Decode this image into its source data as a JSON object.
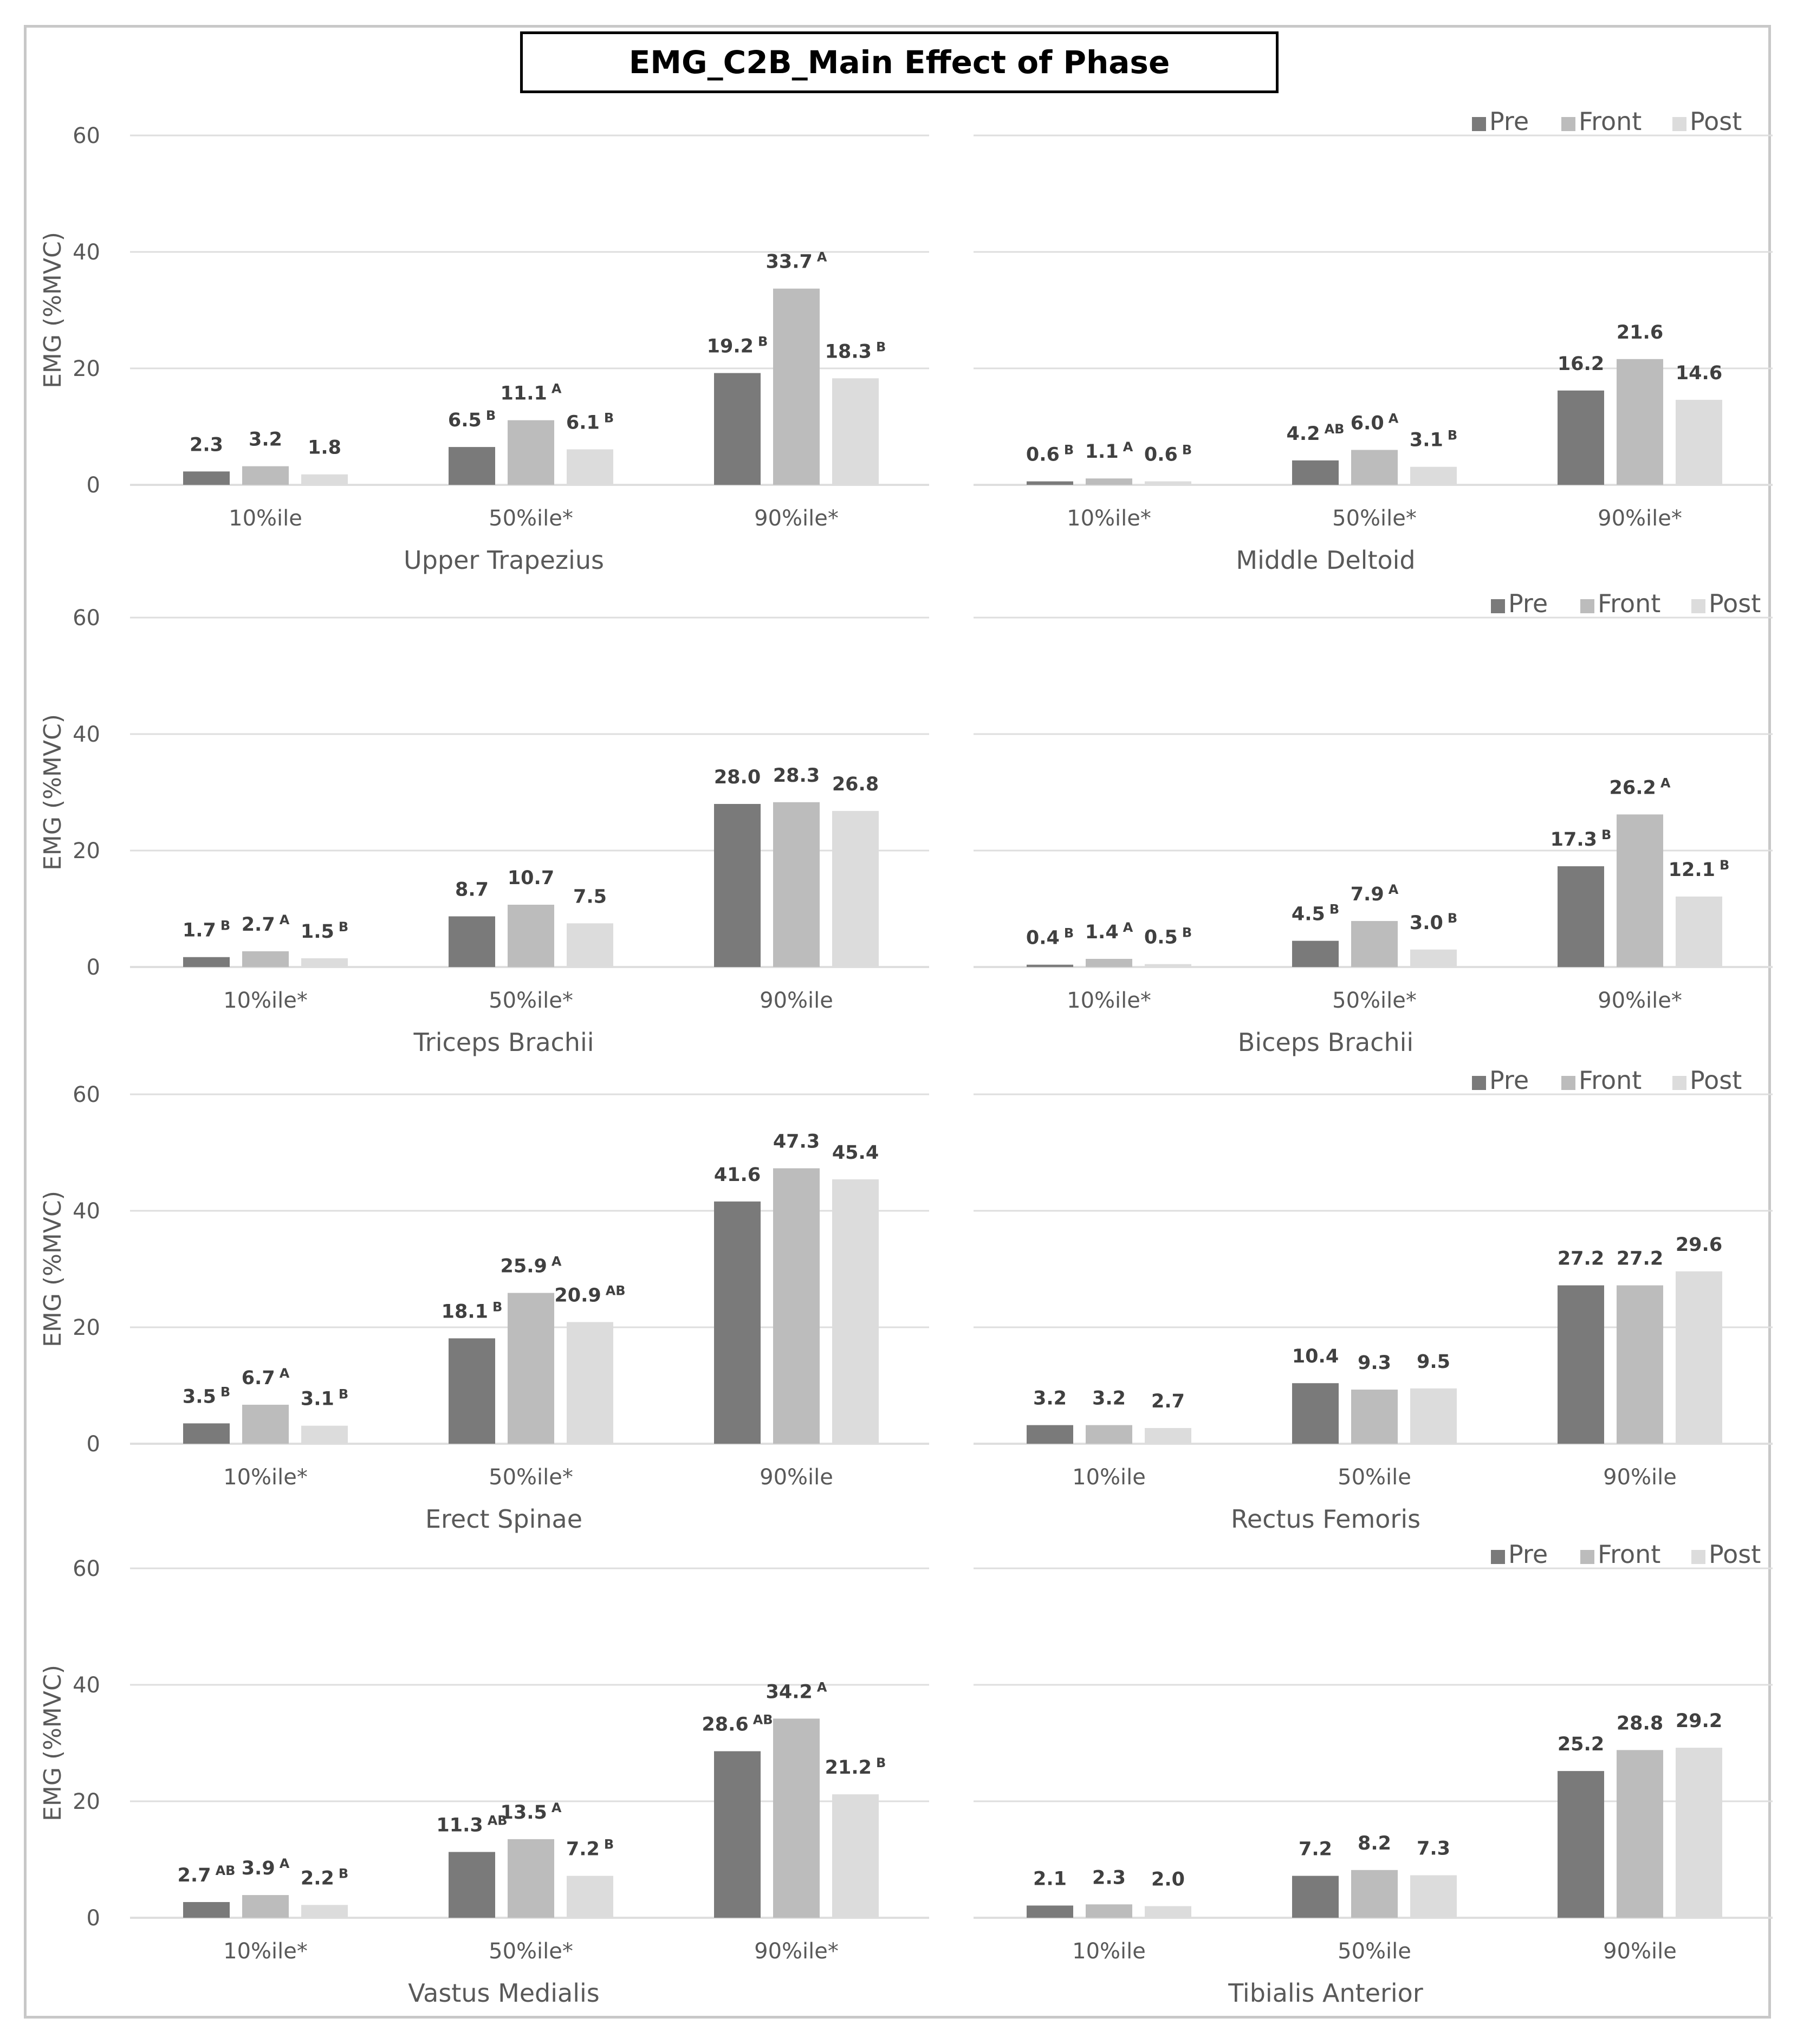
{
  "title": "EMG_C2B_Main Effect of Phase",
  "colors": {
    "pre": "#7a7a7a",
    "front": "#bcbcbc",
    "post": "#dcdcdc",
    "grid": "#dedede",
    "axis_text": "#595959",
    "label_text": "#404040"
  },
  "legend": [
    "Pre",
    "Front",
    "Post"
  ],
  "y_axis_label": "EMG (%MVC)",
  "y_ticks": [
    "0",
    "20",
    "40",
    "60"
  ],
  "chart_data": [
    {
      "type": "bar",
      "title": "Upper Trapezius",
      "ylabel": "EMG (%MVC)",
      "ylim": [
        0,
        60
      ],
      "legend": false,
      "categories": [
        "10%ile",
        "50%ile*",
        "90%ile*"
      ],
      "series": [
        {
          "name": "Pre",
          "values": [
            2.3,
            6.5,
            19.2
          ],
          "labels": [
            "2.3",
            "6.5",
            "19.2"
          ],
          "sup": [
            "",
            "B",
            "B"
          ]
        },
        {
          "name": "Front",
          "values": [
            3.2,
            11.1,
            33.7
          ],
          "labels": [
            "3.2",
            "11.1",
            "33.7"
          ],
          "sup": [
            "",
            "A",
            "A"
          ]
        },
        {
          "name": "Post",
          "values": [
            1.8,
            6.1,
            18.3
          ],
          "labels": [
            "1.8",
            "6.1",
            "18.3"
          ],
          "sup": [
            "",
            "B",
            "B"
          ]
        }
      ]
    },
    {
      "type": "bar",
      "title": "Middle Deltoid",
      "ylabel": "",
      "ylim": [
        0,
        60
      ],
      "legend": true,
      "categories": [
        "10%ile*",
        "50%ile*",
        "90%ile*"
      ],
      "series": [
        {
          "name": "Pre",
          "values": [
            0.6,
            4.2,
            16.2
          ],
          "labels": [
            "0.6",
            "4.2",
            "16.2"
          ],
          "sup": [
            "B",
            "AB",
            ""
          ]
        },
        {
          "name": "Front",
          "values": [
            1.1,
            6.0,
            21.6
          ],
          "labels": [
            "1.1",
            "6.0",
            "21.6"
          ],
          "sup": [
            "A",
            "A",
            ""
          ]
        },
        {
          "name": "Post",
          "values": [
            0.6,
            3.1,
            14.6
          ],
          "labels": [
            "0.6",
            "3.1",
            "14.6"
          ],
          "sup": [
            "B",
            "B",
            ""
          ]
        }
      ]
    },
    {
      "type": "bar",
      "title": "Triceps Brachii",
      "ylabel": "EMG (%MVC)",
      "ylim": [
        0,
        60
      ],
      "legend": false,
      "categories": [
        "10%ile*",
        "50%ile*",
        "90%ile"
      ],
      "series": [
        {
          "name": "Pre",
          "values": [
            1.7,
            8.7,
            28.0
          ],
          "labels": [
            "1.7",
            "8.7",
            "28.0"
          ],
          "sup": [
            "B",
            "",
            ""
          ]
        },
        {
          "name": "Front",
          "values": [
            2.7,
            10.7,
            28.3
          ],
          "labels": [
            "2.7",
            "10.7",
            "28.3"
          ],
          "sup": [
            "A",
            "",
            ""
          ]
        },
        {
          "name": "Post",
          "values": [
            1.5,
            7.5,
            26.8
          ],
          "labels": [
            "1.5",
            "7.5",
            "26.8"
          ],
          "sup": [
            "B",
            "",
            ""
          ]
        }
      ]
    },
    {
      "type": "bar",
      "title": "Biceps Brachii",
      "ylabel": "",
      "ylim": [
        0,
        60
      ],
      "legend": true,
      "categories": [
        "10%ile*",
        "50%ile*",
        "90%ile*"
      ],
      "series": [
        {
          "name": "Pre",
          "values": [
            0.4,
            4.5,
            17.3
          ],
          "labels": [
            "0.4",
            "4.5",
            "17.3"
          ],
          "sup": [
            "B",
            "B",
            "B"
          ]
        },
        {
          "name": "Front",
          "values": [
            1.4,
            7.9,
            26.2
          ],
          "labels": [
            "1.4",
            "7.9",
            "26.2"
          ],
          "sup": [
            "A",
            "A",
            "A"
          ]
        },
        {
          "name": "Post",
          "values": [
            0.5,
            3.0,
            12.1
          ],
          "labels": [
            "0.5",
            "3.0",
            "12.1"
          ],
          "sup": [
            "B",
            "B",
            "B"
          ]
        }
      ]
    },
    {
      "type": "bar",
      "title": "Erect Spinae",
      "ylabel": "EMG (%MVC)",
      "ylim": [
        0,
        60
      ],
      "legend": false,
      "categories": [
        "10%ile*",
        "50%ile*",
        "90%ile"
      ],
      "series": [
        {
          "name": "Pre",
          "values": [
            3.5,
            18.1,
            41.6
          ],
          "labels": [
            "3.5",
            "18.1",
            "41.6"
          ],
          "sup": [
            "B",
            "B",
            ""
          ]
        },
        {
          "name": "Front",
          "values": [
            6.7,
            25.9,
            47.3
          ],
          "labels": [
            "6.7",
            "25.9",
            "47.3"
          ],
          "sup": [
            "A",
            "A",
            ""
          ]
        },
        {
          "name": "Post",
          "values": [
            3.1,
            20.9,
            45.4
          ],
          "labels": [
            "3.1",
            "20.9",
            "45.4"
          ],
          "sup": [
            "B",
            "AB",
            ""
          ]
        }
      ]
    },
    {
      "type": "bar",
      "title": "Rectus Femoris",
      "ylabel": "",
      "ylim": [
        0,
        60
      ],
      "legend": true,
      "categories": [
        "10%ile",
        "50%ile",
        "90%ile"
      ],
      "series": [
        {
          "name": "Pre",
          "values": [
            3.2,
            10.4,
            27.2
          ],
          "labels": [
            "3.2",
            "10.4",
            "27.2"
          ],
          "sup": [
            "",
            "",
            ""
          ]
        },
        {
          "name": "Front",
          "values": [
            3.2,
            9.3,
            27.2
          ],
          "labels": [
            "3.2",
            "9.3",
            "27.2"
          ],
          "sup": [
            "",
            "",
            ""
          ]
        },
        {
          "name": "Post",
          "values": [
            2.7,
            9.5,
            29.6
          ],
          "labels": [
            "2.7",
            "9.5",
            "29.6"
          ],
          "sup": [
            "",
            "",
            ""
          ]
        }
      ]
    },
    {
      "type": "bar",
      "title": "Vastus Medialis",
      "ylabel": "EMG (%MVC)",
      "ylim": [
        0,
        60
      ],
      "legend": false,
      "categories": [
        "10%ile*",
        "50%ile*",
        "90%ile*"
      ],
      "series": [
        {
          "name": "Pre",
          "values": [
            2.7,
            11.3,
            28.6
          ],
          "labels": [
            "2.7",
            "11.3",
            "28.6"
          ],
          "sup": [
            "AB",
            "AB",
            "AB"
          ]
        },
        {
          "name": "Front",
          "values": [
            3.9,
            13.5,
            34.2
          ],
          "labels": [
            "3.9",
            "13.5",
            "34.2"
          ],
          "sup": [
            "A",
            "A",
            "A"
          ]
        },
        {
          "name": "Post",
          "values": [
            2.2,
            7.2,
            21.2
          ],
          "labels": [
            "2.2",
            "7.2",
            "21.2"
          ],
          "sup": [
            "B",
            "B",
            "B"
          ]
        }
      ]
    },
    {
      "type": "bar",
      "title": "Tibialis Anterior",
      "ylabel": "",
      "ylim": [
        0,
        60
      ],
      "legend": true,
      "categories": [
        "10%ile",
        "50%ile",
        "90%ile"
      ],
      "series": [
        {
          "name": "Pre",
          "values": [
            2.1,
            7.2,
            25.2
          ],
          "labels": [
            "2.1",
            "7.2",
            "25.2"
          ],
          "sup": [
            "",
            "",
            ""
          ]
        },
        {
          "name": "Front",
          "values": [
            2.3,
            8.2,
            28.8
          ],
          "labels": [
            "2.3",
            "8.2",
            "28.8"
          ],
          "sup": [
            "",
            "",
            ""
          ]
        },
        {
          "name": "Post",
          "values": [
            2.0,
            7.3,
            29.2
          ],
          "labels": [
            "2.0",
            "7.3",
            "29.2"
          ],
          "sup": [
            "",
            "",
            ""
          ]
        }
      ]
    }
  ]
}
